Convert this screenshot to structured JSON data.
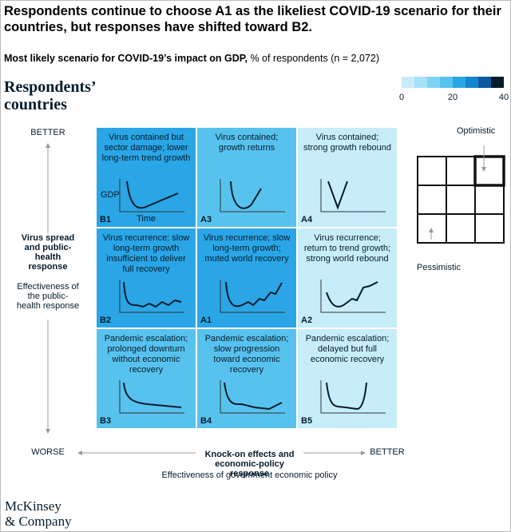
{
  "chart_data": {
    "type": "heatmap",
    "title": "Respondents continue to choose A1 as the likeliest COVID-19 scenario for their countries, but responses have shifted toward B2.",
    "subtitle_bold": "Most likely scenario for COVID-19’s impact on GDP,",
    "subtitle": "% of respondents (n = 2,072)",
    "panel_title": "Respondents’ countries",
    "colorbar": {
      "lim": [
        0,
        40
      ],
      "ticks": [
        0,
        20,
        40
      ],
      "colors": [
        "#c8edfa",
        "#a6e2f7",
        "#7fd3f2",
        "#58c2ee",
        "#2aa6e6",
        "#1386cf",
        "#0b5aa0",
        "#051c2c"
      ]
    },
    "cells": [
      {
        "code": "B1",
        "text": "Virus contained but sector damage; lower long-term trend growth",
        "value": 22
      },
      {
        "code": "A3",
        "text": "Virus contained; growth returns",
        "value": 16
      },
      {
        "code": "A4",
        "text": "Virus contained; strong growth rebound",
        "value": 3
      },
      {
        "code": "B2",
        "text": "Virus recurrence; slow long-term growth insufficient to deliver full recovery",
        "value": 22
      },
      {
        "code": "A1",
        "text": "Virus recurrence; slow long-term growth; muted world recovery",
        "value": 23
      },
      {
        "code": "A2",
        "text": "Virus recurrence; return to trend growth; strong world rebound",
        "value": 4
      },
      {
        "code": "B3",
        "text": "Pandemic escalation; prolonged downturn without economic recovery",
        "value": 15
      },
      {
        "code": "B4",
        "text": "Pandemic escalation; slow progression toward economic recovery",
        "value": 15
      },
      {
        "code": "B5",
        "text": "Pandemic escalation; delayed but full economic recovery",
        "value": 3
      }
    ],
    "gdp_label": "GDP",
    "time_label": "Time",
    "y_axis": {
      "top": "BETTER",
      "bottom": "WORSE",
      "label": "Virus spread and public-health response",
      "sublabel": "Effectiveness of the public-health response"
    },
    "x_axis": {
      "left": "WORSE",
      "right": "BETTER",
      "label": "Knock-on effects and economic-policy response",
      "sublabel": "Effectiveness of government economic policy"
    },
    "inset": {
      "top": "Optimistic",
      "bottom": "Pessimistic"
    },
    "source": [
      "McKinsey",
      "& Company"
    ]
  }
}
